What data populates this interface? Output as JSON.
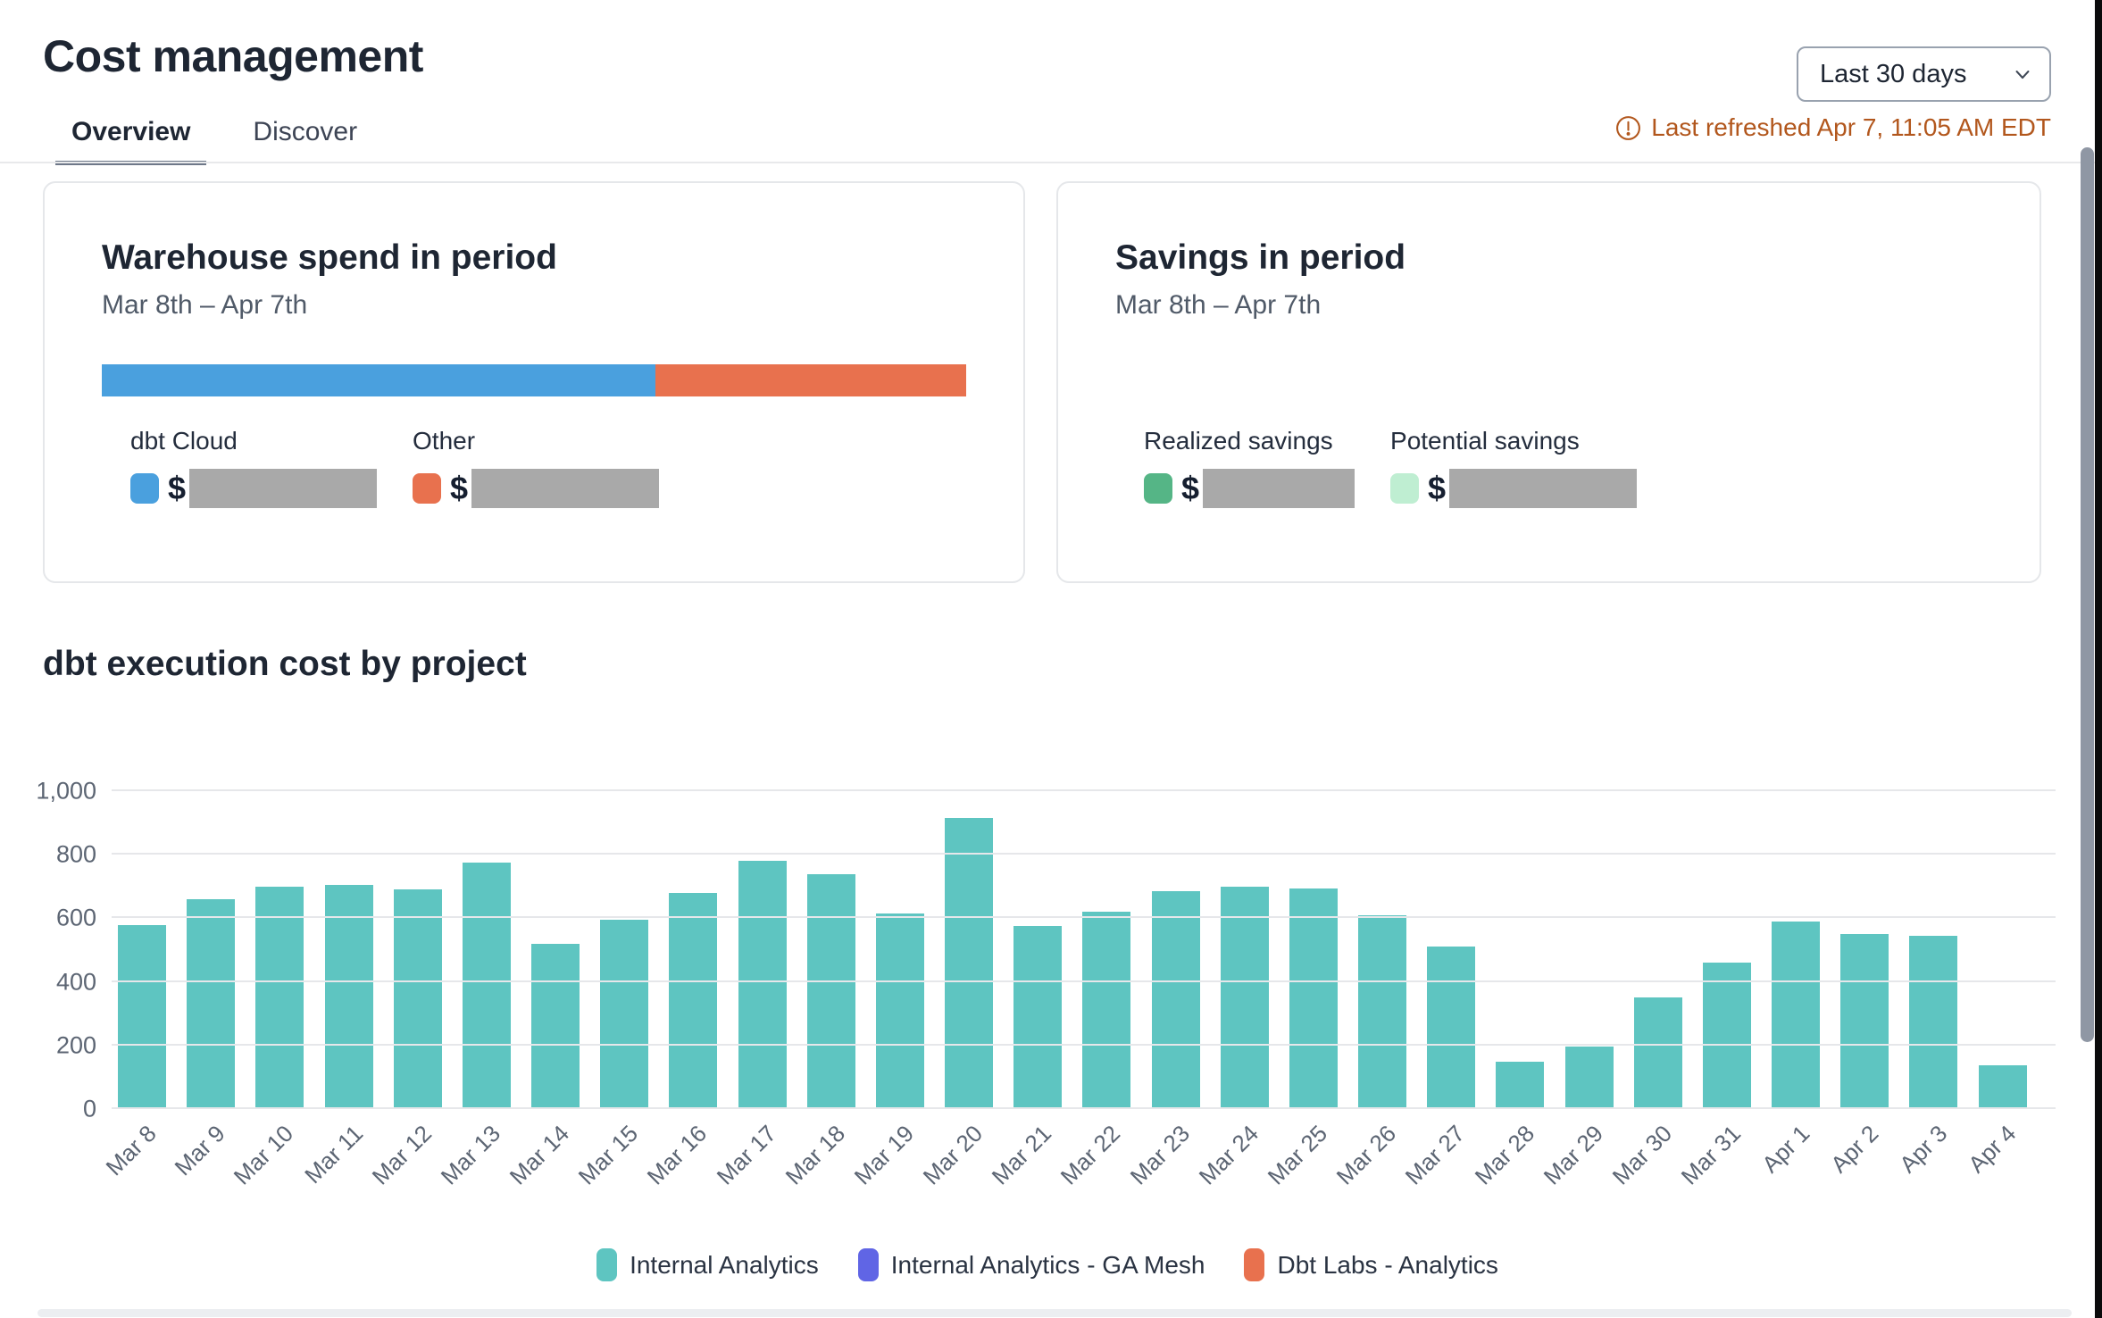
{
  "page": {
    "title": "Cost management",
    "tabs": [
      {
        "label": "Overview",
        "active": true
      },
      {
        "label": "Discover",
        "active": false
      }
    ],
    "period_selector": {
      "value": "Last 30 days"
    },
    "last_refreshed": "Last refreshed Apr 7, 11:05 AM EDT"
  },
  "colors": {
    "accent_teal": "#5EC5C1",
    "accent_indigo": "#6065E5",
    "accent_orange": "#E8714E",
    "accent_blue": "#4AA0DE",
    "accent_green": "#55B586",
    "accent_mint": "#BFEED2",
    "warning_text": "#B2571D",
    "redacted_gray": "#A9A9A9"
  },
  "cards": {
    "warehouse": {
      "title": "Warehouse spend in period",
      "subtitle": "Mar 8th – Apr 7th",
      "segments": [
        {
          "label": "dbt Cloud",
          "color": "#4AA0DE",
          "fraction": 0.64,
          "currency": "$",
          "value_hidden": true
        },
        {
          "label": "Other",
          "color": "#E8714E",
          "fraction": 0.36,
          "currency": "$",
          "value_hidden": true
        }
      ]
    },
    "savings": {
      "title": "Savings in period",
      "subtitle": "Mar 8th – Apr 7th",
      "items": [
        {
          "label": "Realized savings",
          "color": "#55B586",
          "currency": "$",
          "value_hidden": true
        },
        {
          "label": "Potential savings",
          "color": "#BFEED2",
          "currency": "$",
          "value_hidden": true
        }
      ]
    }
  },
  "chart_data": {
    "type": "bar",
    "title": "dbt execution cost by project",
    "categories": [
      "Mar 8",
      "Mar 9",
      "Mar 10",
      "Mar 11",
      "Mar 12",
      "Mar 13",
      "Mar 14",
      "Mar 15",
      "Mar 16",
      "Mar 17",
      "Mar 18",
      "Mar 19",
      "Mar 20",
      "Mar 21",
      "Mar 22",
      "Mar 23",
      "Mar 24",
      "Mar 25",
      "Mar 26",
      "Mar 27",
      "Mar 28",
      "Mar 29",
      "Mar 30",
      "Mar 31",
      "Apr 1",
      "Apr 2",
      "Apr 3",
      "Apr 4"
    ],
    "series": [
      {
        "name": "Internal Analytics",
        "color": "#5EC5C1",
        "values": [
          580,
          660,
          700,
          705,
          690,
          775,
          520,
          595,
          680,
          780,
          740,
          615,
          915,
          575,
          620,
          685,
          700,
          695,
          610,
          510,
          148,
          196,
          350,
          462,
          590,
          552,
          545,
          138
        ]
      },
      {
        "name": "Internal Analytics - GA Mesh",
        "color": "#6065E5",
        "values": []
      },
      {
        "name": "Dbt Labs - Analytics",
        "color": "#E8714E",
        "values": []
      }
    ],
    "xlabel": "",
    "ylabel": "",
    "ylim": [
      0,
      1000
    ],
    "yticks": [
      0,
      200,
      400,
      600,
      800,
      1000
    ],
    "ytick_labels": [
      "0",
      "200",
      "400",
      "600",
      "800",
      "1,000"
    ],
    "grid": true,
    "legend_position": "bottom"
  }
}
